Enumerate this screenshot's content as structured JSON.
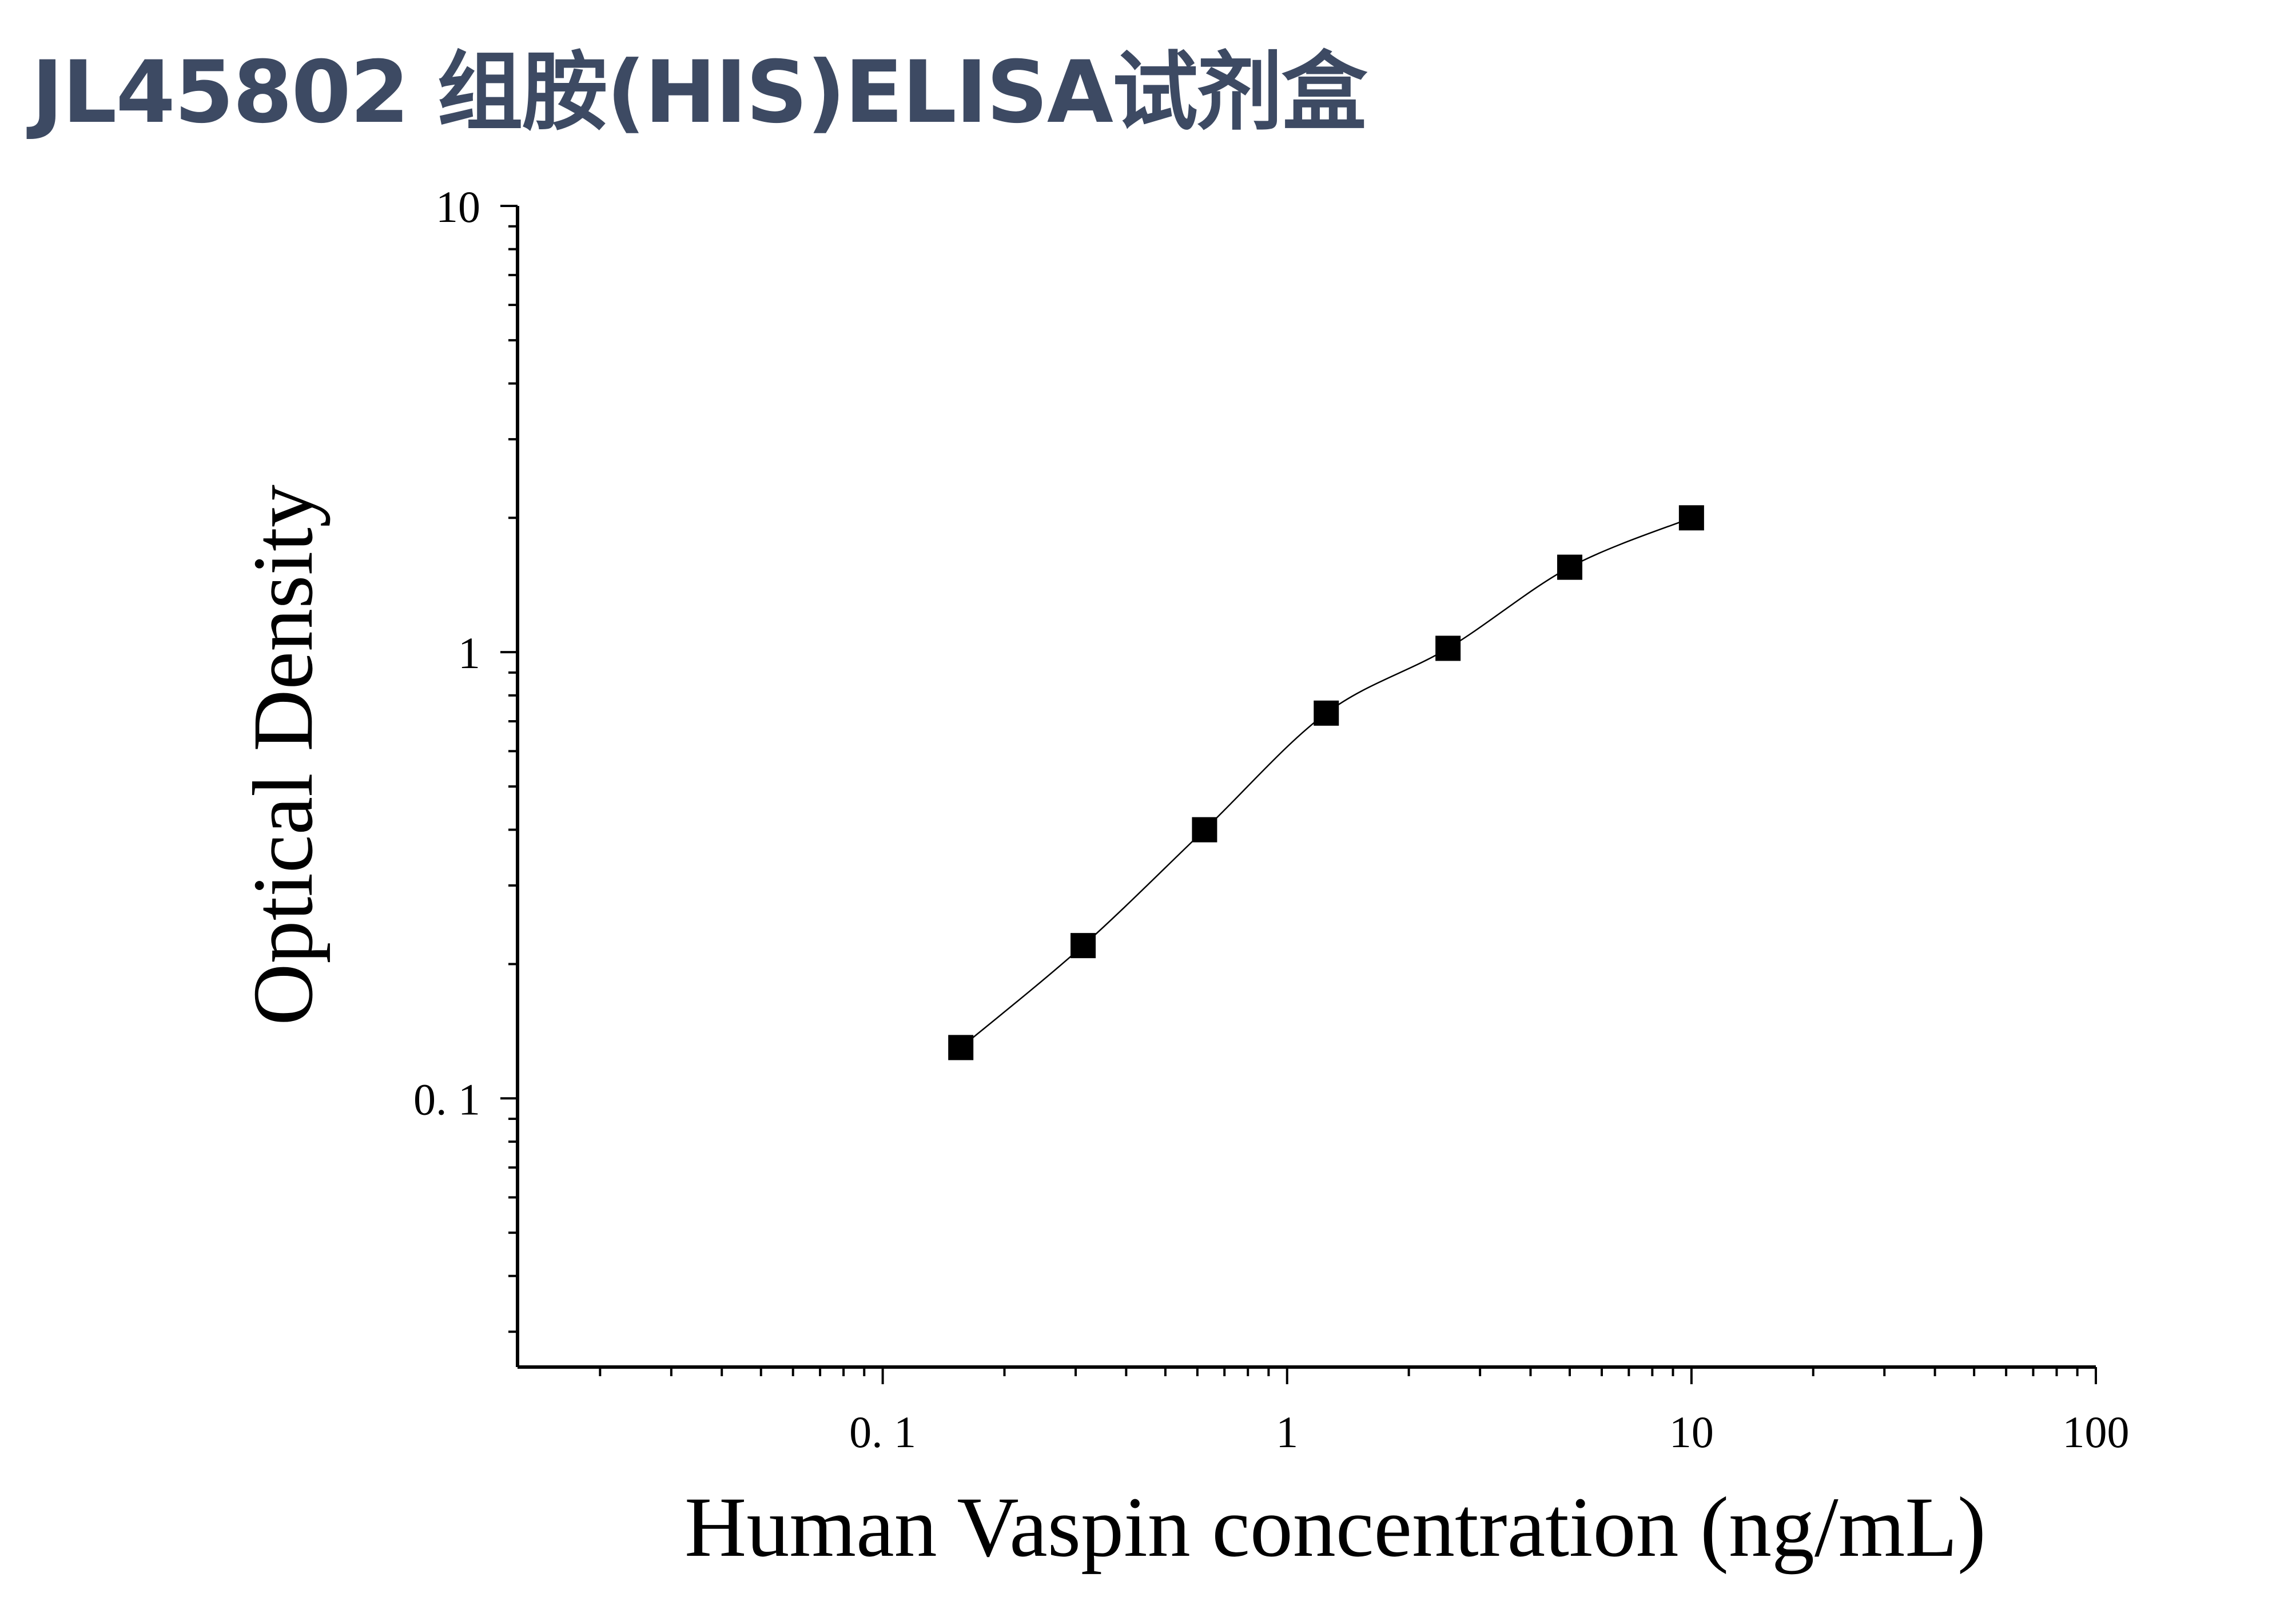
{
  "page": {
    "title": "JL45802 组胺(HIS)ELISA试剂盒",
    "title_color": "#3d4a63"
  },
  "chart_data": {
    "type": "scatter",
    "title": "",
    "xlabel": "Human Vaspin concentration (ng/mL)",
    "ylabel": "Optical Density",
    "xscale": "log",
    "yscale": "log",
    "xlim": [
      0.0125,
      100
    ],
    "ylim": [
      0.025,
      10
    ],
    "xticks": [
      0.1,
      1,
      10,
      100
    ],
    "xtick_labels": [
      "0. 1",
      "1",
      "10",
      "100"
    ],
    "yticks": [
      0.1,
      1,
      10
    ],
    "ytick_labels": [
      "0. 1",
      "1",
      "10"
    ],
    "grid": false,
    "legend": "none",
    "marker": "square",
    "marker_color": "#000000",
    "fit_line": "smooth curve through points",
    "series": [
      {
        "x": [
          0.156,
          0.313,
          0.625,
          1.25,
          2.5,
          5,
          10
        ],
        "y": [
          0.13,
          0.22,
          0.4,
          0.73,
          1.02,
          1.55,
          2.0
        ]
      }
    ]
  }
}
